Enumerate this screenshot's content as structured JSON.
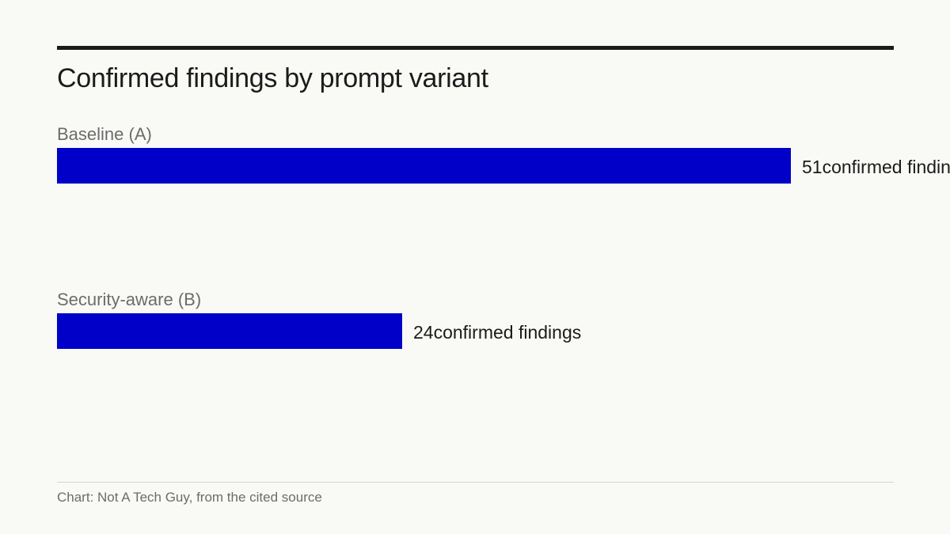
{
  "chart_data": {
    "type": "bar",
    "orientation": "horizontal",
    "title": "Confirmed findings by prompt variant",
    "categories": [
      "Baseline (A)",
      "Security-aware (B)"
    ],
    "values": [
      51,
      24
    ],
    "value_suffix": "confirmed findings",
    "bar_color": "#0000c8",
    "grid": false,
    "source": "Chart: Not A Tech Guy, from the cited source"
  }
}
